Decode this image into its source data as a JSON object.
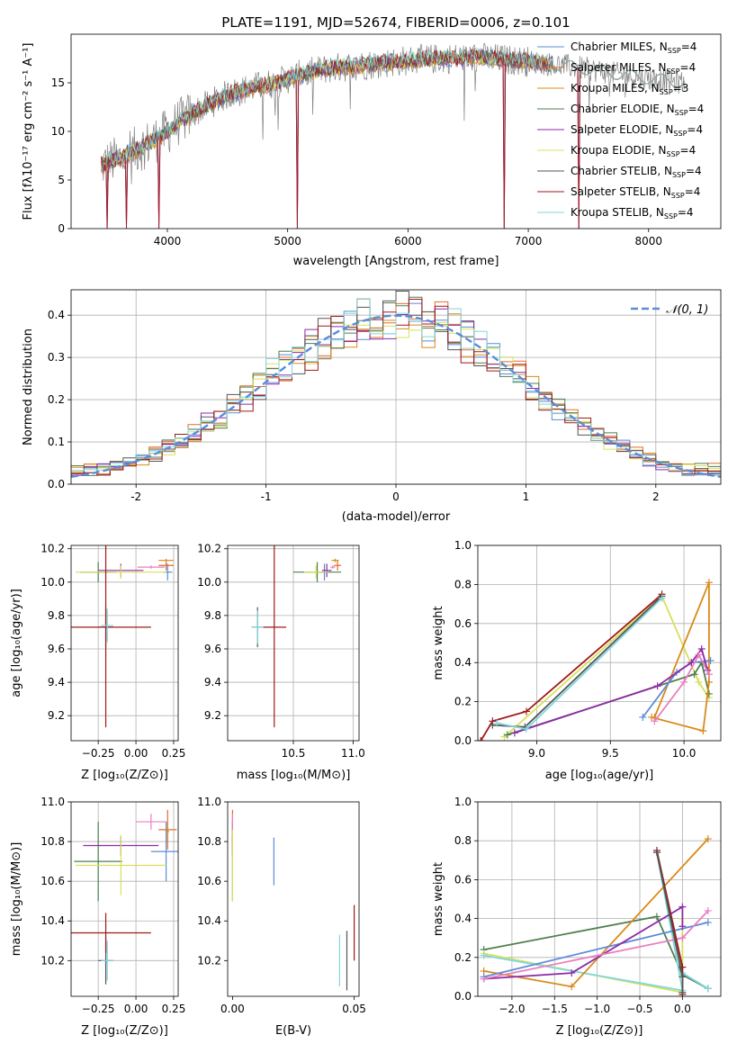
{
  "figure_title": "PLATE=1191, MJD=52674, FIBERID=0006, z=0.101",
  "colors": {
    "Chabrier MILES": "#5b8bd9",
    "Salpeter MILES": "#e56a2e",
    "Kroupa MILES": "#d98a19",
    "Chabrier ELODIE": "#4f7f4f",
    "Salpeter ELODIE": "#8e2aa8",
    "Kroupa ELODIE": "#d8e05a",
    "Chabrier STELIB": "#555555",
    "Salpeter STELIB": "#a01818",
    "Kroupa STELIB": "#7fd6de",
    "observed": "#808080",
    "normal": "#5b8bd9",
    "pink": "#e87fc0"
  },
  "chart_data": [
    {
      "id": "spectrum",
      "type": "line",
      "xlabel": "wavelength [Angstrom, rest frame]",
      "ylabel": "Flux [fλ10⁻¹⁷ erg cm⁻² s⁻¹ A⁻¹]",
      "xlim": [
        3200,
        8600
      ],
      "ylim": [
        0,
        20
      ],
      "xticks": [
        4000,
        5000,
        6000,
        7000,
        8000
      ],
      "yticks": [
        0,
        5,
        10,
        15
      ],
      "legend_position": "top-right",
      "legend": [
        {
          "label": "Chabrier MILES, N",
          "sub": "SSP",
          "tail": "=4",
          "color_key": "Chabrier MILES"
        },
        {
          "label": "Salpeter MILES, N",
          "sub": "SSP",
          "tail": "=4",
          "color_key": "Salpeter MILES"
        },
        {
          "label": "Kroupa MILES, N",
          "sub": "SSP",
          "tail": "=3",
          "color_key": "Kroupa MILES"
        },
        {
          "label": "Chabrier ELODIE, N",
          "sub": "SSP",
          "tail": "=4",
          "color_key": "Chabrier ELODIE"
        },
        {
          "label": "Salpeter ELODIE, N",
          "sub": "SSP",
          "tail": "=4",
          "color_key": "Salpeter ELODIE"
        },
        {
          "label": "Kroupa ELODIE, N",
          "sub": "SSP",
          "tail": "=4",
          "color_key": "Kroupa ELODIE"
        },
        {
          "label": "Chabrier STELIB, N",
          "sub": "SSP",
          "tail": "=4",
          "color_key": "Chabrier STELIB"
        },
        {
          "label": "Salpeter STELIB, N",
          "sub": "SSP",
          "tail": "=4",
          "color_key": "Salpeter STELIB"
        },
        {
          "label": "Kroupa STELIB, N",
          "sub": "SSP",
          "tail": "=4",
          "color_key": "Kroupa STELIB"
        }
      ],
      "continuum": [
        [
          3450,
          6.5
        ],
        [
          3600,
          7.2
        ],
        [
          3800,
          8.5
        ],
        [
          3950,
          9.5
        ],
        [
          4100,
          11.0
        ],
        [
          4300,
          12.5
        ],
        [
          4500,
          13.8
        ],
        [
          4700,
          14.5
        ],
        [
          4900,
          15.0
        ],
        [
          5100,
          15.8
        ],
        [
          5300,
          16.4
        ],
        [
          5600,
          16.8
        ],
        [
          6000,
          17.3
        ],
        [
          6300,
          17.5
        ],
        [
          6600,
          17.6
        ],
        [
          7000,
          17.2
        ],
        [
          7400,
          16.6
        ],
        [
          7800,
          15.8
        ],
        [
          8100,
          15.3
        ],
        [
          8300,
          15.0
        ]
      ],
      "dips": [
        [
          3500,
          0
        ],
        [
          3660,
          0
        ],
        [
          3930,
          0
        ],
        [
          5080,
          0
        ],
        [
          6800,
          0
        ],
        [
          7420,
          0
        ]
      ]
    },
    {
      "id": "residuals",
      "type": "histogram",
      "xlabel": "(data-model)/error",
      "ylabel": "Normed distribution",
      "xlim": [
        -2.5,
        2.5
      ],
      "ylim": [
        0,
        0.46
      ],
      "xticks": [
        -2,
        -1,
        0,
        1,
        2
      ],
      "yticks": [
        0.0,
        0.1,
        0.2,
        0.3,
        0.4
      ],
      "ytick_labels": [
        "0.0",
        "0.1",
        "0.2",
        "0.3",
        "0.4"
      ],
      "legend": {
        "label": "𝒩(0, 1)",
        "style": "dashed"
      },
      "legend_position": "top-right",
      "bin_width": 0.1,
      "series_keys": [
        "Chabrier MILES",
        "Salpeter MILES",
        "Kroupa MILES",
        "Chabrier ELODIE",
        "Salpeter ELODIE",
        "Kroupa ELODIE",
        "Chabrier STELIB",
        "Salpeter STELIB",
        "Kroupa STELIB"
      ]
    },
    {
      "id": "age_vs_Z",
      "type": "errorbar",
      "xlabel": "Z [log₁₀(Z/Z⊙)]",
      "ylabel": "age  [log₁₀(age/yr)]",
      "xlim": [
        -0.43,
        0.28
      ],
      "ylim": [
        9.05,
        10.22
      ],
      "xticks": [
        -0.25,
        0.0,
        0.25
      ],
      "xtick_labels": [
        "−0.25",
        "0.00",
        "0.25"
      ],
      "yticks": [
        9.2,
        9.4,
        9.6,
        9.8,
        10.0,
        10.2
      ],
      "ytick_labels": [
        "9.2",
        "9.4",
        "9.6",
        "9.8",
        "10.0",
        "10.2"
      ],
      "points": [
        {
          "c": "Chabrier MILES",
          "x": 0.21,
          "y": 10.06,
          "xe": 0.03,
          "ye": 0.05
        },
        {
          "c": "Salpeter MILES",
          "x": 0.2,
          "y": 10.1,
          "xe": 0.05,
          "ye": 0.03
        },
        {
          "c": "Kroupa MILES",
          "x": 0.2,
          "y": 10.13,
          "xe": 0.05,
          "ye": 0.01
        },
        {
          "c": "Chabrier ELODIE",
          "x": -0.25,
          "y": 10.06,
          "xe": 0.12,
          "ye": 0.06
        },
        {
          "c": "Salpeter ELODIE",
          "x": -0.1,
          "y": 10.07,
          "xe": 0.15,
          "ye": 0.04
        },
        {
          "c": "Kroupa ELODIE",
          "x": -0.1,
          "y": 10.06,
          "xe": 0.3,
          "ye": 0.04
        },
        {
          "c": "Chabrier STELIB",
          "x": -0.2,
          "y": 9.73,
          "xe": 0.05,
          "ye": 0.12
        },
        {
          "c": "Salpeter STELIB",
          "x": -0.2,
          "y": 9.73,
          "xe": 0.3,
          "ye": 0.6
        },
        {
          "c": "Kroupa STELIB",
          "x": -0.19,
          "y": 9.74,
          "xe": 0.04,
          "ye": 0.1
        },
        {
          "c": "pink",
          "x": 0.1,
          "y": 10.09,
          "xe": 0.09,
          "ye": 0.01
        }
      ]
    },
    {
      "id": "age_vs_mass",
      "type": "errorbar",
      "xlabel": "mass [log₁₀(M/M⊙)]",
      "ylabel": "",
      "xlim": [
        9.95,
        11.05
      ],
      "ylim": [
        9.05,
        10.22
      ],
      "xticks": [
        10.5,
        11.0
      ],
      "xtick_labels": [
        "10.5",
        "11.0"
      ],
      "yticks": [
        9.2,
        9.4,
        9.6,
        9.8,
        10.0,
        10.2
      ],
      "ytick_labels": [
        "9.2",
        "9.4",
        "9.6",
        "9.8",
        "10.0",
        "10.2"
      ],
      "points": [
        {
          "c": "Chabrier MILES",
          "x": 10.76,
          "y": 10.06,
          "xe": 0.03,
          "ye": 0.05
        },
        {
          "c": "Salpeter MILES",
          "x": 10.87,
          "y": 10.1,
          "xe": 0.03,
          "ye": 0.03
        },
        {
          "c": "Kroupa MILES",
          "x": 10.85,
          "y": 10.13,
          "xe": 0.03,
          "ye": 0.01
        },
        {
          "c": "Chabrier ELODIE",
          "x": 10.7,
          "y": 10.06,
          "xe": 0.2,
          "ye": 0.06
        },
        {
          "c": "Salpeter ELODIE",
          "x": 10.78,
          "y": 10.07,
          "xe": 0.04,
          "ye": 0.04
        },
        {
          "c": "Kroupa ELODIE",
          "x": 10.69,
          "y": 10.06,
          "xe": 0.1,
          "ye": 0.04
        },
        {
          "c": "Chabrier STELIB",
          "x": 10.2,
          "y": 9.73,
          "xe": 0.05,
          "ye": 0.12
        },
        {
          "c": "Salpeter STELIB",
          "x": 10.34,
          "y": 9.73,
          "xe": 0.1,
          "ye": 0.6
        },
        {
          "c": "Kroupa STELIB",
          "x": 10.2,
          "y": 9.73,
          "xe": 0.05,
          "ye": 0.1
        },
        {
          "c": "pink",
          "x": 10.83,
          "y": 10.09,
          "xe": 0.02,
          "ye": 0.01
        }
      ]
    },
    {
      "id": "weight_vs_age",
      "type": "line",
      "xlabel": "age  [log₁₀(age/yr)]",
      "ylabel": "mass weight",
      "xlim": [
        8.6,
        10.25
      ],
      "ylim": [
        0,
        1
      ],
      "xticks": [
        9.0,
        9.5,
        10.0
      ],
      "xtick_labels": [
        "9.0",
        "9.5",
        "10.0"
      ],
      "yticks": [
        0.0,
        0.2,
        0.4,
        0.6,
        0.8,
        1.0
      ],
      "ytick_labels": [
        "0.0",
        "0.2",
        "0.4",
        "0.6",
        "0.8",
        "1.0"
      ],
      "series": [
        {
          "c": "Kroupa ELODIE",
          "x": [
            8.78,
            9.85,
            10.1,
            10.17
          ],
          "y": [
            0.02,
            0.74,
            0.3,
            0.22
          ]
        },
        {
          "c": "Chabrier ELODIE",
          "x": [
            8.8,
            10.07,
            10.12,
            10.17
          ],
          "y": [
            0.03,
            0.34,
            0.4,
            0.24
          ]
        },
        {
          "c": "Kroupa MILES",
          "x": [
            9.8,
            10.17,
            10.17,
            10.13,
            9.78
          ],
          "y": [
            0.12,
            0.81,
            0.3,
            0.05,
            0.12
          ]
        },
        {
          "c": "Chabrier MILES",
          "x": [
            9.72,
            9.95,
            10.05,
            10.18
          ],
          "y": [
            0.12,
            0.35,
            0.4,
            0.41
          ]
        },
        {
          "c": "Salpeter ELODIE",
          "x": [
            8.85,
            9.82,
            10.05,
            10.12,
            10.16
          ],
          "y": [
            0.04,
            0.28,
            0.4,
            0.47,
            0.36
          ]
        },
        {
          "c": "pink",
          "x": [
            9.8,
            10.0,
            10.1,
            10.17
          ],
          "y": [
            0.1,
            0.3,
            0.44,
            0.34
          ]
        },
        {
          "c": "Salpeter STELIB",
          "x": [
            8.62,
            8.7,
            8.93,
            9.85
          ],
          "y": [
            0.0,
            0.1,
            0.15,
            0.75
          ]
        },
        {
          "c": "Chabrier STELIB",
          "x": [
            8.7,
            8.92,
            9.85
          ],
          "y": [
            0.08,
            0.07,
            0.74
          ]
        },
        {
          "c": "Kroupa STELIB",
          "x": [
            8.73,
            8.93,
            9.85
          ],
          "y": [
            0.09,
            0.06,
            0.73
          ]
        }
      ]
    },
    {
      "id": "mass_vs_Z",
      "type": "errorbar",
      "xlabel": "Z [log₁₀(Z/Z⊙)]",
      "ylabel": "mass [log₁₀(M/M⊙)]",
      "xlim": [
        -0.43,
        0.28
      ],
      "ylim": [
        10.02,
        11.0
      ],
      "xticks": [
        -0.25,
        0.0,
        0.25
      ],
      "xtick_labels": [
        "−0.25",
        "0.00",
        "0.25"
      ],
      "yticks": [
        10.2,
        10.4,
        10.6,
        10.8,
        11.0
      ],
      "ytick_labels": [
        "10.2",
        "10.4",
        "10.6",
        "10.8",
        "11.0"
      ],
      "points": [
        {
          "c": "Chabrier MILES",
          "x": 0.2,
          "y": 10.75,
          "xe": 0.1,
          "ye": 0.15
        },
        {
          "c": "Salpeter MILES",
          "x": 0.21,
          "y": 10.86,
          "xe": 0.06,
          "ye": 0.1
        },
        {
          "c": "Kroupa MILES",
          "x": 0.21,
          "y": 10.85,
          "xe": 0.01,
          "ye": 0.05
        },
        {
          "c": "Chabrier ELODIE",
          "x": -0.25,
          "y": 10.7,
          "xe": 0.16,
          "ye": 0.2
        },
        {
          "c": "Salpeter ELODIE",
          "x": -0.1,
          "y": 10.78,
          "xe": 0.25,
          "ye": 0.05
        },
        {
          "c": "Kroupa ELODIE",
          "x": -0.1,
          "y": 10.68,
          "xe": 0.3,
          "ye": 0.15
        },
        {
          "c": "Chabrier STELIB",
          "x": -0.2,
          "y": 10.2,
          "xe": 0.05,
          "ye": 0.12
        },
        {
          "c": "Salpeter STELIB",
          "x": -0.2,
          "y": 10.34,
          "xe": 0.3,
          "ye": 0.1
        },
        {
          "c": "Kroupa STELIB",
          "x": -0.19,
          "y": 10.2,
          "xe": 0.04,
          "ye": 0.1
        },
        {
          "c": "pink",
          "x": 0.1,
          "y": 10.9,
          "xe": 0.1,
          "ye": 0.04
        }
      ]
    },
    {
      "id": "mass_vs_ebv",
      "type": "errorbar",
      "xlabel": "E(B-V)",
      "ylabel": "",
      "xlim": [
        -0.002,
        0.052
      ],
      "ylim": [
        10.02,
        11.0
      ],
      "xticks": [
        0.0,
        0.05
      ],
      "xtick_labels": [
        "0.00",
        "0.05"
      ],
      "yticks": [
        10.2,
        10.4,
        10.6,
        10.8,
        11.0
      ],
      "ytick_labels": [
        "10.2",
        "10.4",
        "10.6",
        "10.8",
        "11.0"
      ],
      "points": [
        {
          "c": "Chabrier MILES",
          "x": 0.017,
          "y": 10.7,
          "xe": 0,
          "ye": 0.12
        },
        {
          "c": "Salpeter MILES",
          "x": 0.0,
          "y": 10.86,
          "xe": 0,
          "ye": 0.1
        },
        {
          "c": "Kroupa MILES",
          "x": 0.0,
          "y": 10.85,
          "xe": 0,
          "ye": 0.05
        },
        {
          "c": "Chabrier ELODIE",
          "x": 0.0,
          "y": 10.7,
          "xe": 0,
          "ye": 0.2
        },
        {
          "c": "Salpeter ELODIE",
          "x": 0.0,
          "y": 10.78,
          "xe": 0,
          "ye": 0.05
        },
        {
          "c": "Kroupa ELODIE",
          "x": 0.0,
          "y": 10.68,
          "xe": 0,
          "ye": 0.18
        },
        {
          "c": "Chabrier STELIB",
          "x": 0.047,
          "y": 10.2,
          "xe": 0,
          "ye": 0.15
        },
        {
          "c": "Salpeter STELIB",
          "x": 0.05,
          "y": 10.34,
          "xe": 0,
          "ye": 0.14
        },
        {
          "c": "Kroupa STELIB",
          "x": 0.044,
          "y": 10.2,
          "xe": 0,
          "ye": 0.13
        },
        {
          "c": "pink",
          "x": 0.0,
          "y": 10.9,
          "xe": 0,
          "ye": 0.04
        }
      ]
    },
    {
      "id": "weight_vs_Z",
      "type": "line",
      "xlabel": "Z [log₁₀(Z/Z⊙)]",
      "ylabel": "mass weight",
      "xlim": [
        -2.4,
        0.45
      ],
      "ylim": [
        0,
        1
      ],
      "xticks": [
        -2.0,
        -1.5,
        -1.0,
        -0.5,
        0.0
      ],
      "xtick_labels": [
        "−2.0",
        "−1.5",
        "−1.0",
        "−0.5",
        "0.0"
      ],
      "yticks": [
        0.0,
        0.2,
        0.4,
        0.6,
        0.8,
        1.0
      ],
      "ytick_labels": [
        "0.0",
        "0.2",
        "0.4",
        "0.6",
        "0.8",
        "1.0"
      ],
      "series": [
        {
          "c": "Chabrier ELODIE",
          "x": [
            -2.33,
            -0.3,
            0.0,
            0.3
          ],
          "y": [
            0.24,
            0.41,
            0.11,
            0.04
          ]
        },
        {
          "c": "Kroupa ELODIE",
          "x": [
            -2.33,
            0.0,
            0.0,
            0.0
          ],
          "y": [
            0.22,
            0.02,
            0.4,
            0.3
          ]
        },
        {
          "c": "Kroupa STELIB",
          "x": [
            -2.33,
            0.0,
            -0.3,
            0.0,
            0.3
          ],
          "y": [
            0.21,
            0.03,
            0.74,
            0.12,
            0.04
          ]
        },
        {
          "c": "Kroupa MILES",
          "x": [
            -2.33,
            -1.3,
            0.3
          ],
          "y": [
            0.13,
            0.05,
            0.81
          ]
        },
        {
          "c": "Chabrier MILES",
          "x": [
            -2.33,
            0.3
          ],
          "y": [
            0.1,
            0.38
          ]
        },
        {
          "c": "Salpeter ELODIE",
          "x": [
            -2.33,
            -1.3,
            0.0,
            0.0
          ],
          "y": [
            0.09,
            0.12,
            0.46,
            0.36
          ]
        },
        {
          "c": "pink",
          "x": [
            -2.33,
            0.0,
            0.3
          ],
          "y": [
            0.09,
            0.3,
            0.44
          ]
        },
        {
          "c": "Salpeter STELIB",
          "x": [
            -0.3,
            0.0,
            0.0
          ],
          "y": [
            0.75,
            0.15,
            0.01
          ]
        },
        {
          "c": "Chabrier STELIB",
          "x": [
            -0.3,
            0.0,
            0.0
          ],
          "y": [
            0.74,
            0.1,
            0.02
          ]
        }
      ]
    }
  ]
}
